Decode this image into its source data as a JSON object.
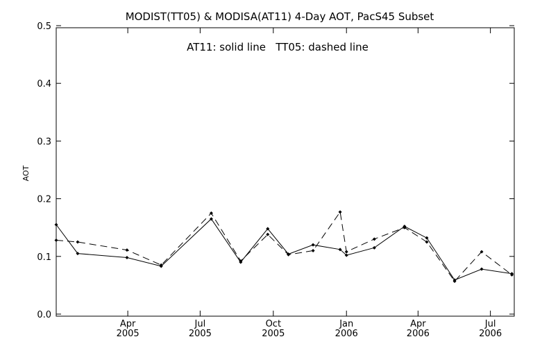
{
  "chart_data": {
    "type": "line",
    "title": "MODIST(TT05) & MODISA(AT11) 4-Day AOT, PacS45 Subset",
    "annotation": "AT11: solid line   TT05: dashed line",
    "ylabel": "AOT",
    "xlabel": "",
    "ylim": [
      0.0,
      0.5
    ],
    "yticks": [
      0.0,
      0.1,
      0.2,
      0.3,
      0.4,
      0.5
    ],
    "ytick_labels": [
      "0.0",
      "0.1",
      "0.2",
      "0.3",
      "0.4",
      "0.5"
    ],
    "xlim": [
      "2005-01-01",
      "2006-07-31"
    ],
    "xticks": [
      {
        "date": "2005-04-01",
        "month": "Apr",
        "year": "2005"
      },
      {
        "date": "2005-07-01",
        "month": "Jul",
        "year": "2005"
      },
      {
        "date": "2005-10-01",
        "month": "Oct",
        "year": "2005"
      },
      {
        "date": "2006-01-01",
        "month": "Jan",
        "year": "2006"
      },
      {
        "date": "2006-04-01",
        "month": "Apr",
        "year": "2006"
      },
      {
        "date": "2006-07-01",
        "month": "Jul",
        "year": "2006"
      }
    ],
    "grid": false,
    "series": [
      {
        "name": "AT11",
        "style": "solid",
        "x": [
          "2005-01-01",
          "2005-01-28",
          "2005-03-31",
          "2005-05-13",
          "2005-07-15",
          "2005-08-21",
          "2005-09-24",
          "2005-10-20",
          "2005-11-20",
          "2005-12-24",
          "2006-01-01",
          "2006-02-05",
          "2006-03-15",
          "2006-04-12",
          "2006-05-17",
          "2006-06-20",
          "2006-07-28"
        ],
        "values": [
          0.155,
          0.105,
          0.098,
          0.083,
          0.165,
          0.09,
          0.148,
          0.104,
          0.12,
          0.112,
          0.102,
          0.115,
          0.152,
          0.132,
          0.059,
          0.078,
          0.07
        ]
      },
      {
        "name": "TT05",
        "style": "dashed",
        "x": [
          "2005-01-01",
          "2005-01-28",
          "2005-03-31",
          "2005-05-13",
          "2005-07-15",
          "2005-08-21",
          "2005-09-24",
          "2005-10-20",
          "2005-11-20",
          "2005-12-24",
          "2006-01-01",
          "2006-02-05",
          "2006-03-15",
          "2006-04-12",
          "2006-05-17",
          "2006-06-20",
          "2006-07-28"
        ],
        "values": [
          0.128,
          0.125,
          0.111,
          0.085,
          0.175,
          0.092,
          0.138,
          0.103,
          0.11,
          0.177,
          0.108,
          0.13,
          0.15,
          0.125,
          0.057,
          0.108,
          0.068
        ]
      }
    ]
  }
}
